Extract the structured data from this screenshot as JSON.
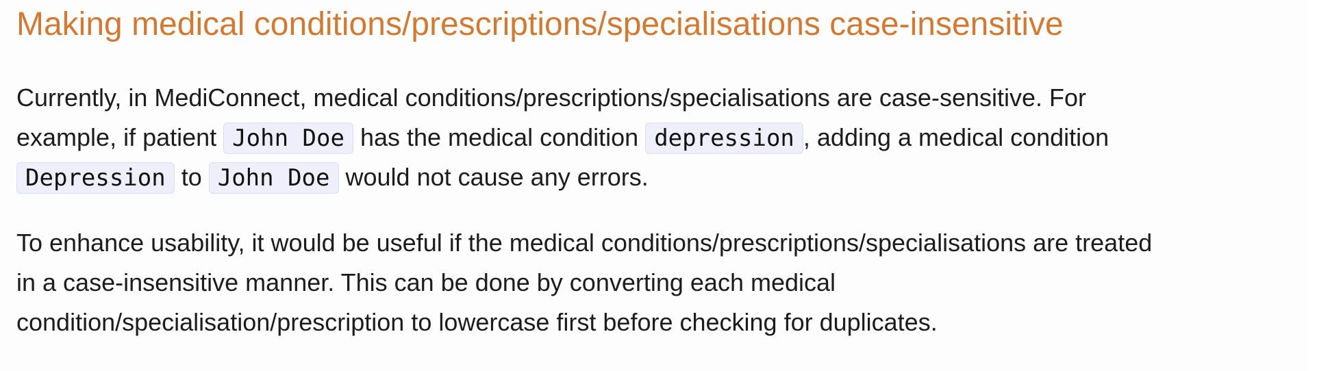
{
  "title": "Making medical conditions/prescriptions/specialisations case-insensitive",
  "paragraph1": {
    "line1": "Currently, in MediConnect, medical conditions/prescriptions/specialisations are case-sensitive. For",
    "line2_a": "example, if patient ",
    "code_patient1": "John Doe",
    "line2_b": " has the medical condition ",
    "code_condition_lower": "depression",
    "line2_c": ", adding a medical condition",
    "code_condition_upper": "Depression",
    "line3_a": " to ",
    "code_patient2": "John Doe",
    "line3_b": " would not cause any errors."
  },
  "paragraph2": {
    "line1": "To enhance usability, it would be useful if the medical conditions/prescriptions/specialisations are treated",
    "line2": "in a case-insensitive manner. This can be done by converting each medical",
    "line3": "condition/specialisation/prescription to lowercase first before checking for duplicates."
  }
}
